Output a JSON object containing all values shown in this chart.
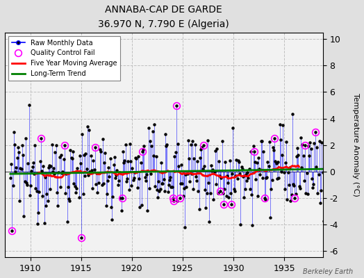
{
  "title": "ANNABA-CAP DE GARDE",
  "subtitle": "36.970 N, 7.790 E (Algeria)",
  "ylabel": "Temperature Anomaly (°C)",
  "credit": "Berkeley Earth",
  "ylim": [
    -6.5,
    10.5
  ],
  "yticks": [
    -6,
    -4,
    -2,
    0,
    2,
    4,
    6,
    8,
    10
  ],
  "xlim": [
    1907.5,
    1938.8
  ],
  "xticks": [
    1910,
    1915,
    1920,
    1925,
    1930,
    1935
  ],
  "bg_color": "#e0e0e0",
  "plot_bg_color": "#f2f2f2",
  "seed": 12345,
  "raw_color": "blue",
  "ma_color": "red",
  "trend_color": "green",
  "qc_color": "magenta",
  "figsize": [
    5.24,
    4.0
  ],
  "dpi": 100
}
